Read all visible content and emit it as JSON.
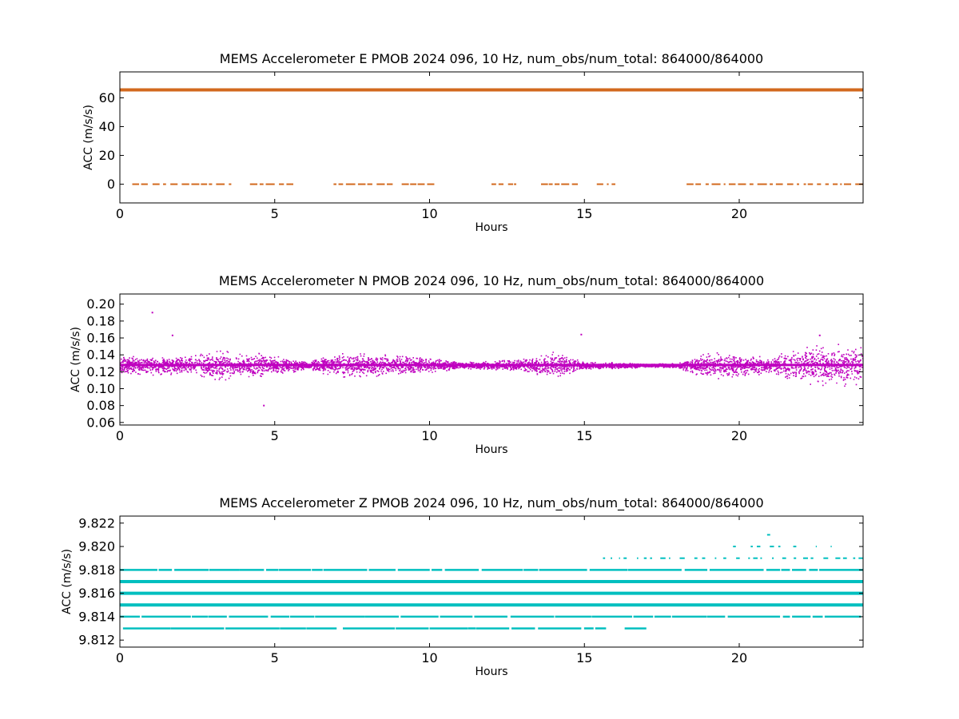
{
  "chart_data": [
    {
      "type": "scatter",
      "title": "MEMS Accelerometer E PMOB 2024 096, 10 Hz, num_obs/num_total: 864000/864000",
      "xlabel": "Hours",
      "ylabel": "ACC (m/s/s)",
      "xlim": [
        0,
        24
      ],
      "ylim": [
        -13,
        78
      ],
      "xticks": [
        0,
        5,
        10,
        15,
        20
      ],
      "yticks": [
        0,
        20,
        40,
        60
      ],
      "color": "#d2691e",
      "grid": false,
      "series": [
        {
          "level": 65.5,
          "dense": true,
          "segments": [
            [
              0,
              24
            ]
          ]
        },
        {
          "level": 0,
          "dense": false,
          "segments": [
            [
              0.4,
              3.6
            ],
            [
              4.2,
              5.6
            ],
            [
              6.9,
              8.9
            ],
            [
              9.1,
              10.2
            ],
            [
              12.0,
              12.8
            ],
            [
              13.6,
              14.8
            ],
            [
              15.4,
              16.0
            ],
            [
              18.3,
              24.0
            ]
          ]
        }
      ]
    },
    {
      "type": "scatter",
      "title": "MEMS Accelerometer N PMOB 2024 096, 10 Hz, num_obs/num_total: 864000/864000",
      "xlabel": "Hours",
      "ylabel": "ACC (m/s/s)",
      "xlim": [
        0,
        24
      ],
      "ylim": [
        0.057,
        0.212
      ],
      "xticks": [
        0,
        5,
        10,
        15,
        20
      ],
      "yticks": [
        0.06,
        0.08,
        0.1,
        0.12,
        0.14,
        0.16,
        0.18,
        0.2
      ],
      "yticklabels": [
        "0.06",
        "0.08",
        "0.10",
        "0.12",
        "0.14",
        "0.16",
        "0.18",
        "0.20"
      ],
      "color": "#bf00bf",
      "grid": false,
      "mean": 0.128,
      "noise_envelope": {
        "hours": [
          0,
          2,
          3,
          3.5,
          4,
          4.5,
          5,
          6,
          7,
          8,
          9,
          10,
          11,
          12,
          13,
          14,
          15,
          16,
          17,
          18,
          19,
          20,
          21,
          22,
          23,
          24
        ],
        "spread": [
          0.012,
          0.011,
          0.02,
          0.018,
          0.012,
          0.016,
          0.012,
          0.005,
          0.015,
          0.014,
          0.013,
          0.009,
          0.004,
          0.005,
          0.008,
          0.016,
          0.004,
          0.004,
          0.002,
          0.003,
          0.016,
          0.014,
          0.01,
          0.022,
          0.025,
          0.026
        ]
      },
      "outliers": [
        {
          "x": 1.05,
          "y": 0.19
        },
        {
          "x": 4.65,
          "y": 0.08
        },
        {
          "x": 1.7,
          "y": 0.163
        },
        {
          "x": 14.9,
          "y": 0.164
        },
        {
          "x": 22.6,
          "y": 0.163
        }
      ]
    },
    {
      "type": "scatter",
      "title": "MEMS Accelerometer Z PMOB 2024 096, 10 Hz, num_obs/num_total: 864000/864000",
      "xlabel": "Hours",
      "ylabel": "ACC (m/s/s)",
      "xlim": [
        0,
        24
      ],
      "ylim": [
        9.8114,
        9.8226
      ],
      "xticks": [
        0,
        5,
        10,
        15,
        20
      ],
      "yticks": [
        9.812,
        9.814,
        9.816,
        9.818,
        9.82,
        9.822
      ],
      "yticklabels": [
        "9.812",
        "9.814",
        "9.816",
        "9.818",
        "9.820",
        "9.822"
      ],
      "color": "#00bfbf",
      "grid": false,
      "series": [
        {
          "level": 9.813,
          "segments": [
            [
              0.1,
              7.0
            ],
            [
              7.2,
              15.7
            ],
            [
              16.3,
              17.0
            ]
          ],
          "density": "medium"
        },
        {
          "level": 9.814,
          "segments": [
            [
              0,
              24
            ]
          ],
          "density": "medium"
        },
        {
          "level": 9.815,
          "segments": [
            [
              0,
              24
            ]
          ],
          "density": "heavy"
        },
        {
          "level": 9.816,
          "segments": [
            [
              0,
              24
            ]
          ],
          "density": "heavy"
        },
        {
          "level": 9.817,
          "segments": [
            [
              0,
              24
            ]
          ],
          "density": "heavy"
        },
        {
          "level": 9.818,
          "segments": [
            [
              0,
              24
            ]
          ],
          "density": "medium"
        },
        {
          "level": 9.819,
          "segments": [
            [
              15.6,
              24
            ]
          ],
          "density": "sparse"
        },
        {
          "level": 9.82,
          "segments": [
            [
              19.8,
              23.0
            ]
          ],
          "density": "rare"
        },
        {
          "level": 9.821,
          "segments": [
            [
              20.9,
              21.0
            ]
          ],
          "density": "rare"
        }
      ]
    }
  ]
}
